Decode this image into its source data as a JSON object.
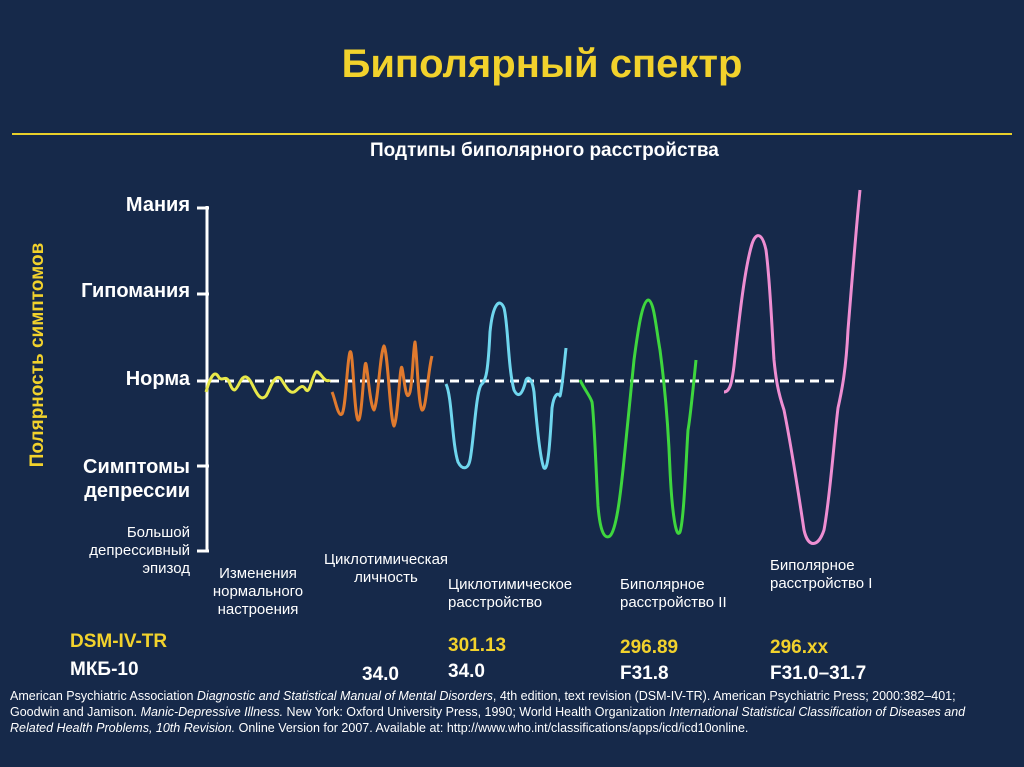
{
  "title": "Биполярный спектр",
  "subtitle": "Подтипы биполярного расстройства",
  "y_axis_title": "Полярность симптомов",
  "y_levels": [
    "Мания",
    "Гипомания",
    "Норма",
    "Симптомы депрессии",
    "Большой депрессивный эпизод"
  ],
  "categories": [
    "Изменения нормального настроения",
    "Циклотимическая личность",
    "Циклотимическое расстройство",
    "Биполярное расстройство II",
    "Биполярное расстройство I"
  ],
  "codes": {
    "dsm_label": "DSM-IV-TR",
    "icd_label": "МКБ-10",
    "cyclothymic_personality_icd": "34.0",
    "cyclothymic_disorder_dsm": "301.13",
    "cyclothymic_disorder_icd": "34.0",
    "bipolar2_dsm": "296.89",
    "bipolar2_icd": "F31.8",
    "bipolar1_dsm": "296.xx",
    "bipolar1_icd": "F31.0–31.7"
  },
  "colors": {
    "background": "#16294a",
    "title": "#f2d22c",
    "normal_mood": "#e8e84a",
    "cyclothymic_personality": "#e07a2e",
    "cyclothymic_disorder": "#6fd6ee",
    "bipolar2": "#3ed63e",
    "bipolar1": "#ee8ed2",
    "baseline": "#ffffff"
  },
  "reference": {
    "p1": "American Psychiatric Association ",
    "i1": "Diagnostic and Statistical Manual of Mental Disorders",
    "p2": ", 4th edition, text revision (DSM-IV-TR). American Psychiatric Press; 2000:382–401; Goodwin and Jamison. ",
    "i2": "Manic-Depressive Illness.",
    "p3": " New York: Oxford University Press, 1990; World Health Organization ",
    "i3": "International Statistical Classification of Diseases and Related Health Problems, 10th Revision.",
    "p4": " Online Version for 2007. Available at: http://www.who.int/classifications/apps/icd/icd10online."
  }
}
